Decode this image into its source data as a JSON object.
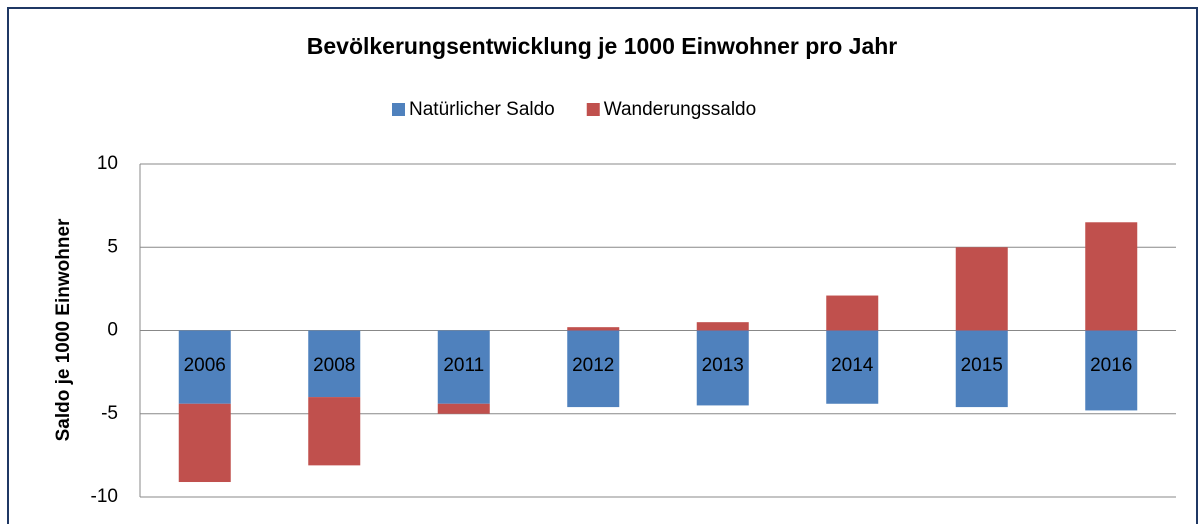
{
  "chart_data": {
    "type": "stacked_bar",
    "title": "Bevölkerungsentwicklung je 1000 Einwohner pro Jahr",
    "y_label": "Saldo je 1000 Einwohner",
    "categories": [
      "2006",
      "2008",
      "2011",
      "2012",
      "2013",
      "2014",
      "2015",
      "2016"
    ],
    "series": [
      {
        "name": "Natürlicher Saldo",
        "color": "#4f81bd",
        "values": [
          -4.4,
          -4.0,
          -4.4,
          -4.6,
          -4.5,
          -4.4,
          -4.6,
          -4.8
        ]
      },
      {
        "name": "Wanderungssaldo",
        "color": "#c0504d",
        "values": [
          -4.7,
          -4.1,
          -0.6,
          0.2,
          0.5,
          2.1,
          5.0,
          6.5
        ]
      }
    ],
    "ylim": [
      -10,
      10
    ],
    "yticks": [
      -10,
      -5,
      0,
      5,
      10
    ],
    "grid": true,
    "legend": "top"
  }
}
